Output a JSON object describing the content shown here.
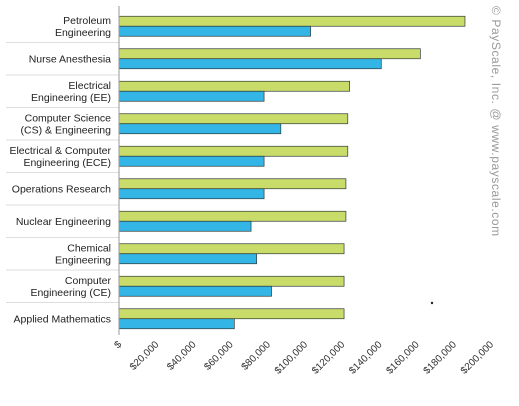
{
  "chart_data": {
    "type": "bar",
    "orientation": "horizontal",
    "categories": [
      "Petroleum\nEngineering",
      "Nurse Anesthesia",
      "Electrical\nEngineering (EE)",
      "Computer Science\n(CS) & Engineering",
      "Electrical & Computer\nEngineering (ECE)",
      "Operations Research",
      "Nuclear Engineering",
      "Chemical\nEngineering",
      "Computer\nEngineering (CE)",
      "Applied Mathematics"
    ],
    "series": [
      {
        "color": "#c9dc6a",
        "values": [
          186000,
          162000,
          124000,
          123000,
          123000,
          122000,
          122000,
          121000,
          121000,
          121000
        ]
      },
      {
        "color": "#33b5e5",
        "values": [
          103000,
          141000,
          78000,
          87000,
          78000,
          78000,
          71000,
          74000,
          82000,
          62000
        ]
      }
    ],
    "x_ticks": [
      "$",
      "$20,000",
      "$40,000",
      "$60,000",
      "$80,000",
      "$100,000",
      "$120,000",
      "$140,000",
      "$160,000",
      "$180,000",
      "$200,000"
    ],
    "xlim": [
      0,
      200000
    ],
    "grid": false,
    "legend": "none",
    "watermark": "© PayScale, Inc. @ www.payscale.com"
  }
}
